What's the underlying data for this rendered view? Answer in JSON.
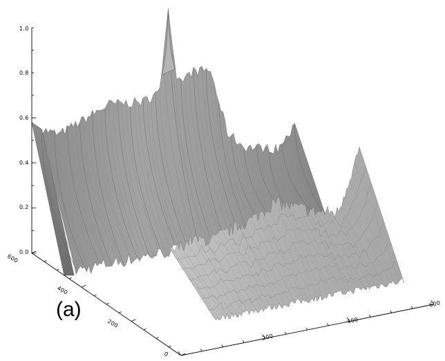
{
  "panel_label": "(a)",
  "chart_data": {
    "type": "surface",
    "title": "",
    "x_axis": {
      "range": [
        0,
        600
      ],
      "ticks": [
        "0",
        "200",
        "400",
        "600"
      ]
    },
    "y_axis": {
      "range": [
        0,
        600
      ],
      "ticks": [
        "0",
        "200",
        "400",
        "600"
      ]
    },
    "z_axis": {
      "range": [
        0,
        1.0
      ],
      "ticks": [
        "0.0",
        "0.2",
        "0.4",
        "0.6",
        "0.8",
        "1.0"
      ]
    },
    "grid": false,
    "surface_color": "#9a9a9a",
    "shading": "lit gray",
    "back_ridge_profile": {
      "x": [
        0,
        40,
        80,
        120,
        160,
        200,
        240,
        280,
        300,
        320,
        360,
        400,
        440,
        480,
        520,
        560,
        600
      ],
      "z": [
        0.58,
        0.54,
        0.57,
        0.6,
        0.63,
        0.62,
        0.61,
        0.64,
        1.0,
        0.66,
        0.7,
        0.69,
        0.4,
        0.32,
        0.3,
        0.28,
        0.36
      ]
    },
    "front_ridge_profile": {
      "x": [
        0,
        50,
        100,
        150,
        200,
        250,
        300,
        350,
        400,
        450,
        500,
        550,
        600
      ],
      "z": [
        0.1,
        0.18,
        0.2,
        0.17,
        0.21,
        0.19,
        0.22,
        0.25,
        0.3,
        0.26,
        0.22,
        0.2,
        0.46
      ]
    },
    "peak": {
      "x": 300,
      "y": 450,
      "z": 1.0
    }
  }
}
